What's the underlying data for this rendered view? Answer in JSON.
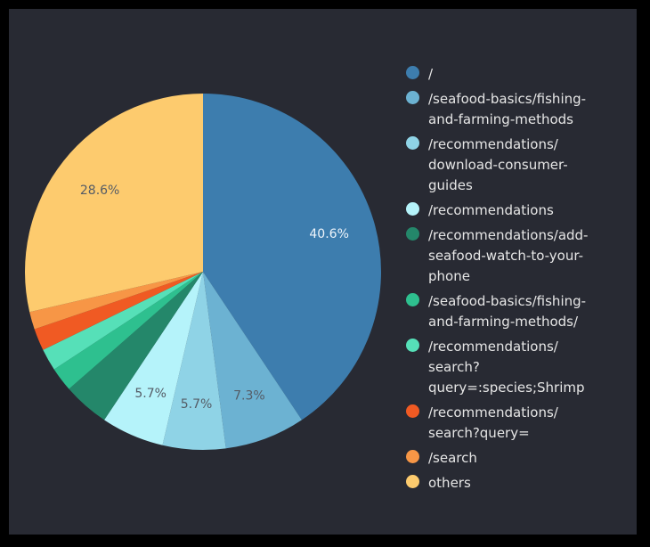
{
  "chart_data": {
    "type": "pie",
    "slices": [
      {
        "label": "/",
        "value": 40.6,
        "display": "40.6%",
        "color": "#3d7dae"
      },
      {
        "label": "/seafood-basics/fishing-and-farming-methods",
        "value": 7.3,
        "display": "7.3%",
        "color": "#6cb2d2"
      },
      {
        "label": "/recommendations/download-consumer-guides",
        "value": 5.7,
        "display": "5.7%",
        "color": "#8fd3e6"
      },
      {
        "label": "/recommendations",
        "value": 5.7,
        "display": "5.7%",
        "color": "#b5f3fa"
      },
      {
        "label": "/recommendations/add-seafood-watch-to-your-phone",
        "value": 4.2,
        "display": "",
        "color": "#24876a"
      },
      {
        "label": "/seafood-basics/fishing-and-farming-methods/",
        "value": 2.2,
        "display": "",
        "color": "#2ec08f"
      },
      {
        "label": "/recommendations/search?query=:species;Shrimp",
        "value": 2.0,
        "display": "",
        "color": "#56e0b8"
      },
      {
        "label": "/recommendations/search?query=",
        "value": 2.0,
        "display": "",
        "color": "#f05a23"
      },
      {
        "label": "/search",
        "value": 1.6,
        "display": "",
        "color": "#f79646"
      },
      {
        "label": "others",
        "value": 28.6,
        "display": "28.6%",
        "color": "#fdcb6e"
      }
    ],
    "legend_position": "right"
  },
  "legend_lines": [
    [
      "/"
    ],
    [
      "/seafood-basics/fishing-",
      "and-farming-methods"
    ],
    [
      "/recommendations/",
      "download-consumer-",
      "guides"
    ],
    [
      "/recommendations"
    ],
    [
      "/recommendations/add-",
      "seafood-watch-to-your-",
      "phone"
    ],
    [
      "/seafood-basics/fishing-",
      "and-farming-methods/"
    ],
    [
      "/recommendations/",
      "search?",
      "query=:species;Shrimp"
    ],
    [
      "/recommendations/",
      "search?query="
    ],
    [
      "/search"
    ],
    [
      "others"
    ]
  ]
}
